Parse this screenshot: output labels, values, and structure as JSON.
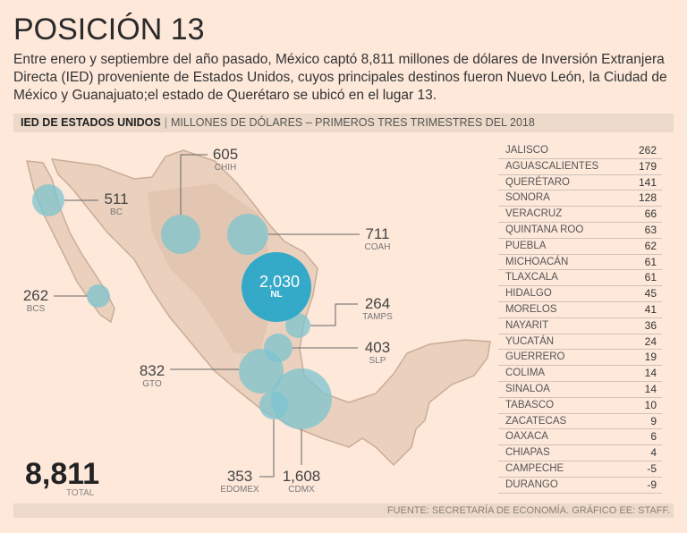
{
  "title": "POSICIÓN 13",
  "intro": "Entre enero y septiembre del año pasado, México captó 8,811 millones de dólares de Inversión Extranjera Directa (IED) proveniente de Estados Unidos, cuyos principales destinos fueron Nuevo León, la Ciudad de México y Guanajuato;el estado de Querétaro se ubicó en el lugar 13.",
  "header": {
    "bold": "IED DE ESTADOS UNIDOS",
    "rest": "MILLONES DE DÓLARES – PRIMEROS TRES TRIMESTRES DEL 2018"
  },
  "colors": {
    "bubble": "#7cc4cf",
    "land": "#ead0bd",
    "background": "#fde8da",
    "nl_bubble": "#2aa8c8"
  },
  "map_bubbles": [
    {
      "state": "BC",
      "value": "511"
    },
    {
      "state": "CHIH",
      "value": "605"
    },
    {
      "state": "COAH",
      "value": "711"
    },
    {
      "state": "NL",
      "value": "2,030"
    },
    {
      "state": "TAMPS",
      "value": "264"
    },
    {
      "state": "SLP",
      "value": "403"
    },
    {
      "state": "GTO",
      "value": "832"
    },
    {
      "state": "BCS",
      "value": "262"
    },
    {
      "state": "EDOMEX",
      "value": "353"
    },
    {
      "state": "CDMX",
      "value": "1,608"
    }
  ],
  "total": {
    "value": "8,811",
    "label": "TOTAL"
  },
  "table": [
    {
      "state": "JALISCO",
      "value": "262"
    },
    {
      "state": "AGUASCALIENTES",
      "value": "179"
    },
    {
      "state": "QUERÉTARO",
      "value": "141"
    },
    {
      "state": "SONORA",
      "value": "128"
    },
    {
      "state": "VERACRUZ",
      "value": "66"
    },
    {
      "state": "QUINTANA ROO",
      "value": "63"
    },
    {
      "state": "PUEBLA",
      "value": "62"
    },
    {
      "state": "MICHOACÁN",
      "value": "61"
    },
    {
      "state": "TLAXCALA",
      "value": "61"
    },
    {
      "state": "HIDALGO",
      "value": "45"
    },
    {
      "state": "MORELOS",
      "value": "41"
    },
    {
      "state": "NAYARIT",
      "value": "36"
    },
    {
      "state": "YUCATÁN",
      "value": "24"
    },
    {
      "state": "GUERRERO",
      "value": "19"
    },
    {
      "state": "COLIMA",
      "value": "14"
    },
    {
      "state": "SINALOA",
      "value": "14"
    },
    {
      "state": "TABASCO",
      "value": "10"
    },
    {
      "state": "ZACATECAS",
      "value": "9"
    },
    {
      "state": "OAXACA",
      "value": "6"
    },
    {
      "state": "CHIAPAS",
      "value": "4"
    },
    {
      "state": "CAMPECHE",
      "value": "-5"
    },
    {
      "state": "DURANGO",
      "value": "-9"
    }
  ],
  "footer": "FUENTE: SECRETARÍA DE ECONOMÍA. GRÁFICO EE: STAFF."
}
